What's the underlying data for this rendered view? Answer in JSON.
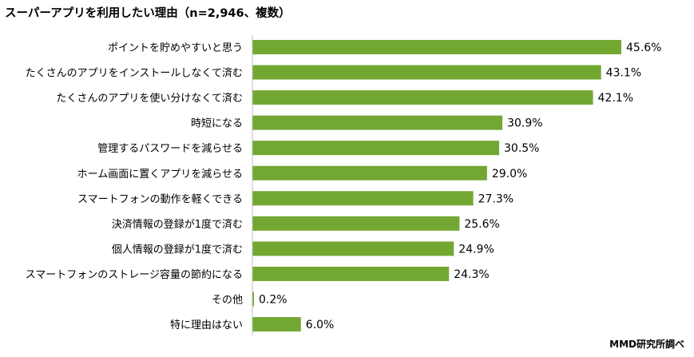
{
  "chart_data": {
    "type": "bar",
    "orientation": "horizontal",
    "title": "スーパーアプリを利用したい理由（n=2,946、複数）",
    "source": "MMD研究所調べ",
    "unit": "%",
    "categories": [
      "ポイントを貯めやすいと思う",
      "たくさんのアプリをインストールしなくて済む",
      "たくさんのアプリを使い分けなくて済む",
      "時短になる",
      "管理するパスワードを減らせる",
      "ホーム画面に置くアプリを減らせる",
      "スマートフォンの動作を軽くできる",
      "決済情報の登録が1度で済む",
      "個人情報の登録が1度で済む",
      "スマートフォンのストレージ容量の節約になる",
      "その他",
      "特に理由はない"
    ],
    "values": [
      45.6,
      43.1,
      42.1,
      30.9,
      30.5,
      29.0,
      27.3,
      25.6,
      24.9,
      24.3,
      0.2,
      6.0
    ],
    "labels": [
      "45.6%",
      "43.1%",
      "42.1%",
      "30.9%",
      "30.5%",
      "29.0%",
      "27.3%",
      "25.6%",
      "24.9%",
      "24.3%",
      "0.2%",
      "6.0%"
    ],
    "xlim": [
      0,
      54
    ],
    "grid": false,
    "legend": "none",
    "colors": {
      "bar": "#72A832",
      "axis": "#BFBFBF"
    }
  }
}
